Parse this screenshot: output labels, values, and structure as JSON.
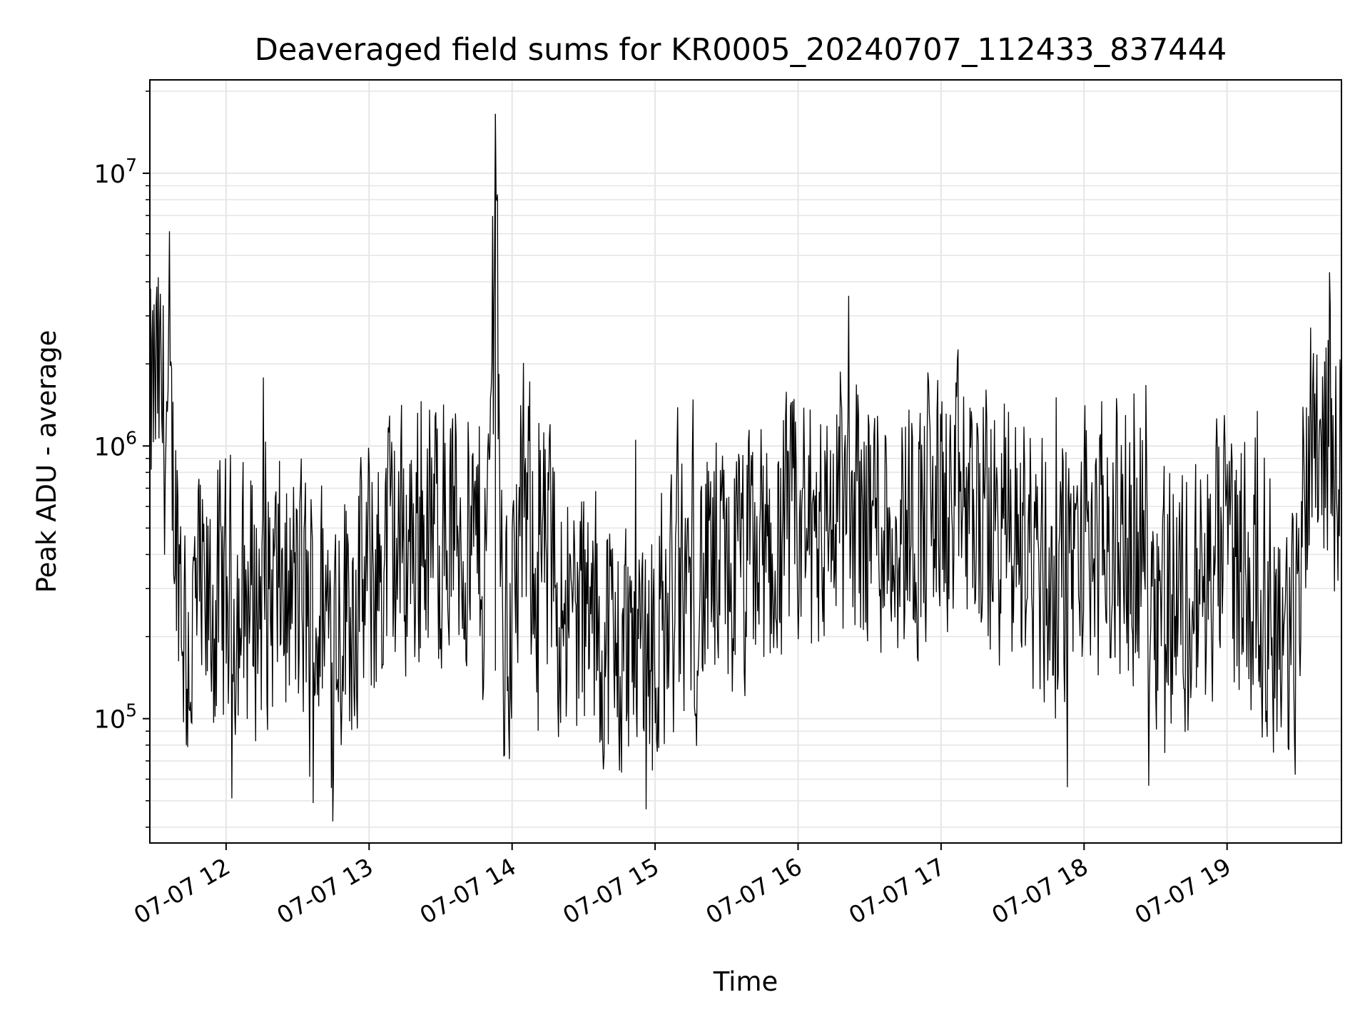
{
  "chart_data": {
    "type": "line",
    "title": "Deaveraged field sums for KR0005_20240707_112433_837444",
    "xlabel": "Time",
    "ylabel": "Peak ADU - average",
    "yscale": "log",
    "ylim": [
      35000,
      22000000
    ],
    "xlim": [
      "2024-07-07 11:28",
      "2024-07-07 19:48"
    ],
    "grid": true,
    "line_color": "#000000",
    "grid_color": "#e6e6e6",
    "x_ticks": [
      "07-07 12",
      "07-07 13",
      "07-07 14",
      "07-07 15",
      "07-07 16",
      "07-07 17",
      "07-07 18",
      "07-07 19"
    ],
    "y_ticks": [
      {
        "base": "10",
        "exp": "5",
        "value": 100000
      },
      {
        "base": "10",
        "exp": "6",
        "value": 1000000
      },
      {
        "base": "10",
        "exp": "7",
        "value": 10000000
      }
    ],
    "series": [
      {
        "color": "#000000",
        "x": [
          "2024-07-07 11:28",
          "2024-07-07 11:30",
          "2024-07-07 11:32",
          "2024-07-07 11:35",
          "2024-07-07 11:38",
          "2024-07-07 11:40",
          "2024-07-07 11:42",
          "2024-07-07 11:45",
          "2024-07-07 11:48",
          "2024-07-07 11:52",
          "2024-07-07 11:55",
          "2024-07-07 12:00",
          "2024-07-07 12:10",
          "2024-07-07 12:20",
          "2024-07-07 12:30",
          "2024-07-07 12:40",
          "2024-07-07 12:52",
          "2024-07-07 12:58",
          "2024-07-07 13:10",
          "2024-07-07 13:20",
          "2024-07-07 13:30",
          "2024-07-07 13:40",
          "2024-07-07 13:50",
          "2024-07-07 13:53",
          "2024-07-07 13:56",
          "2024-07-07 14:05",
          "2024-07-07 14:15",
          "2024-07-07 14:30",
          "2024-07-07 14:45",
          "2024-07-07 15:00",
          "2024-07-07 15:15",
          "2024-07-07 15:30",
          "2024-07-07 15:45",
          "2024-07-07 16:00",
          "2024-07-07 16:15",
          "2024-07-07 16:30",
          "2024-07-07 16:45",
          "2024-07-07 17:00",
          "2024-07-07 17:15",
          "2024-07-07 17:30",
          "2024-07-07 17:45",
          "2024-07-07 18:00",
          "2024-07-07 18:15",
          "2024-07-07 18:30",
          "2024-07-07 18:45",
          "2024-07-07 19:00",
          "2024-07-07 19:15",
          "2024-07-07 19:28",
          "2024-07-07 19:35",
          "2024-07-07 19:42",
          "2024-07-07 19:48"
        ],
        "values": [
          1100000,
          1700000,
          1500000,
          1200000,
          700000,
          450000,
          250000,
          180000,
          260000,
          230000,
          250000,
          260000,
          280000,
          300000,
          280000,
          230000,
          280000,
          300000,
          420000,
          470000,
          520000,
          480000,
          430000,
          16500000,
          150000,
          600000,
          350000,
          230000,
          180000,
          220000,
          300000,
          330000,
          380000,
          480000,
          560000,
          580000,
          540000,
          600000,
          570000,
          480000,
          330000,
          420000,
          460000,
          360000,
          250000,
          420000,
          300000,
          170000,
          1400000,
          1100000,
          800000
        ]
      }
    ]
  }
}
